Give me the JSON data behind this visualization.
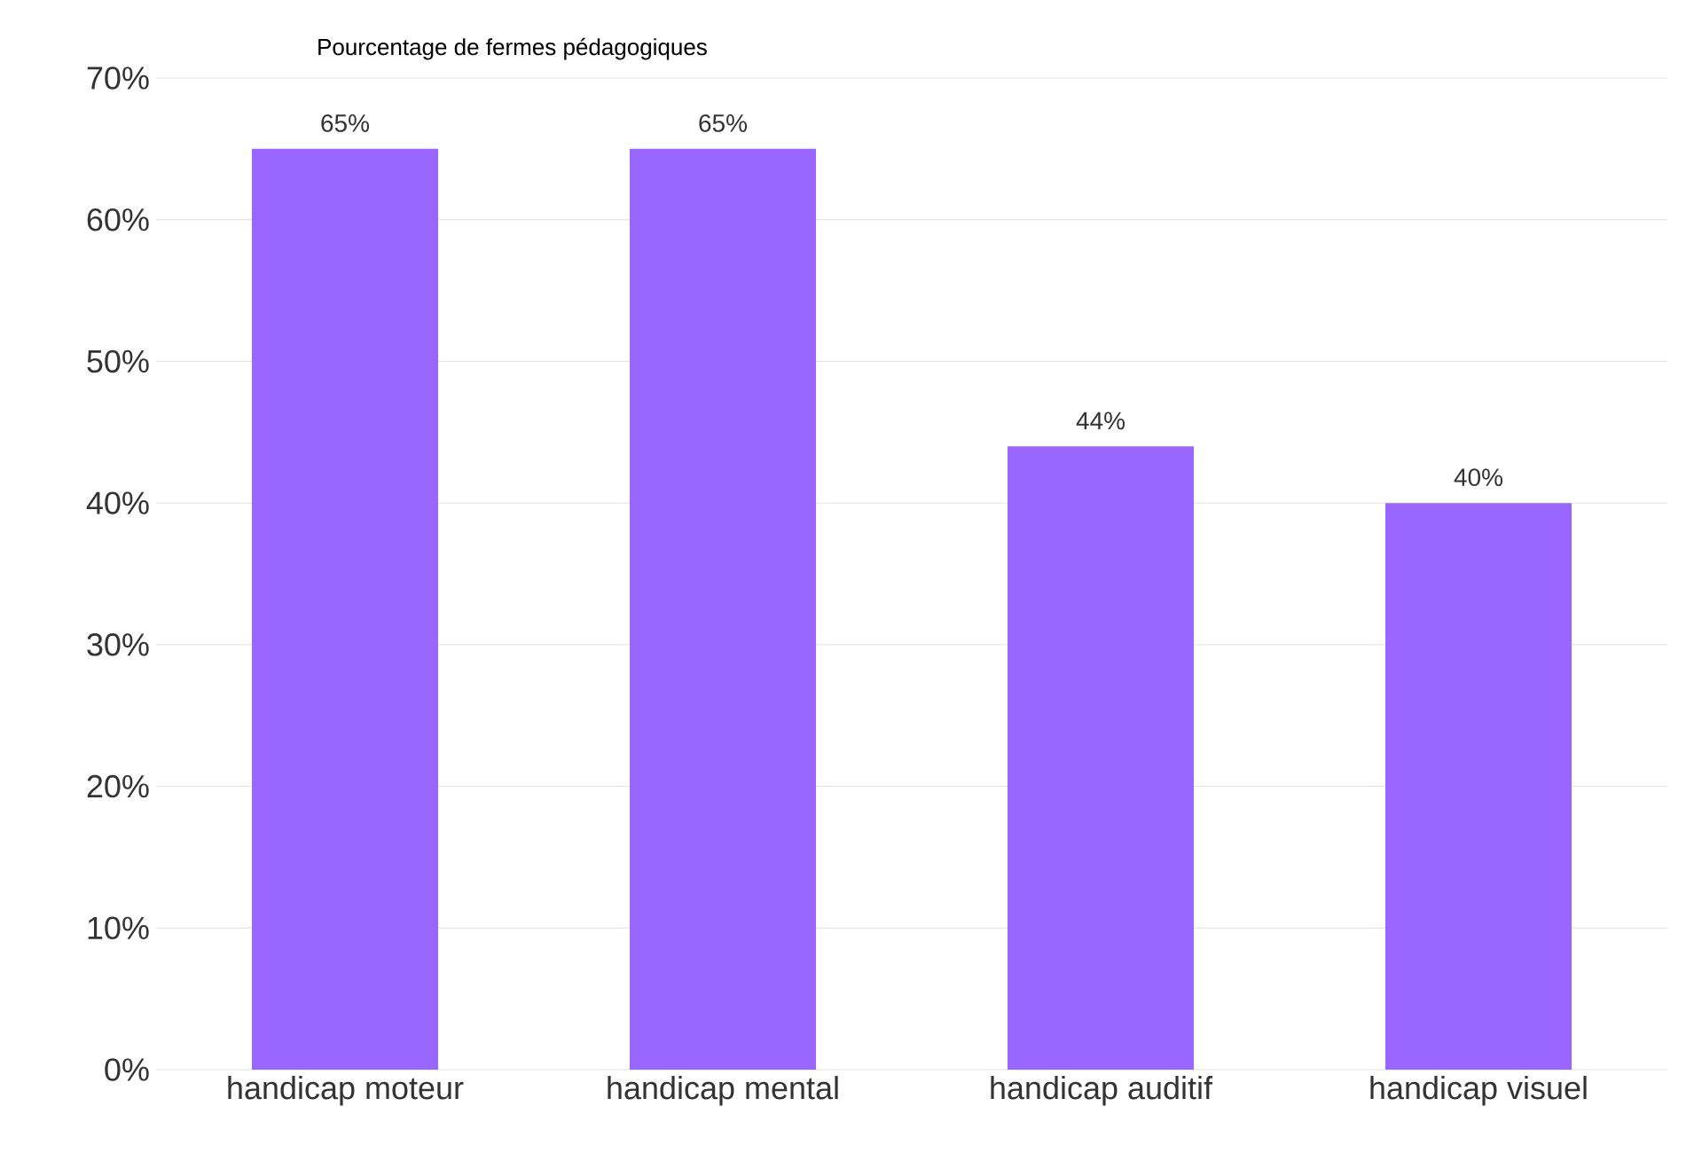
{
  "chart_data": {
    "type": "bar",
    "title": "Pourcentage de fermes pédagogiques",
    "categories": [
      "handicap moteur",
      "handicap mental",
      "handicap auditif",
      "handicap visuel"
    ],
    "values": [
      65,
      65,
      44,
      40
    ],
    "color": "#9966ff",
    "value_labels": [
      "65%",
      "65%",
      "44%",
      "40%"
    ],
    "ylim": [
      0,
      70
    ],
    "yticks": [
      {
        "value": 0,
        "label": "0%"
      },
      {
        "value": 10,
        "label": "10%"
      },
      {
        "value": 20,
        "label": "20%"
      },
      {
        "value": 30,
        "label": "30%"
      },
      {
        "value": 40,
        "label": "40%"
      },
      {
        "value": 50,
        "label": "50%"
      },
      {
        "value": 60,
        "label": "60%"
      },
      {
        "value": 70,
        "label": "70%"
      }
    ],
    "grid": "y"
  }
}
